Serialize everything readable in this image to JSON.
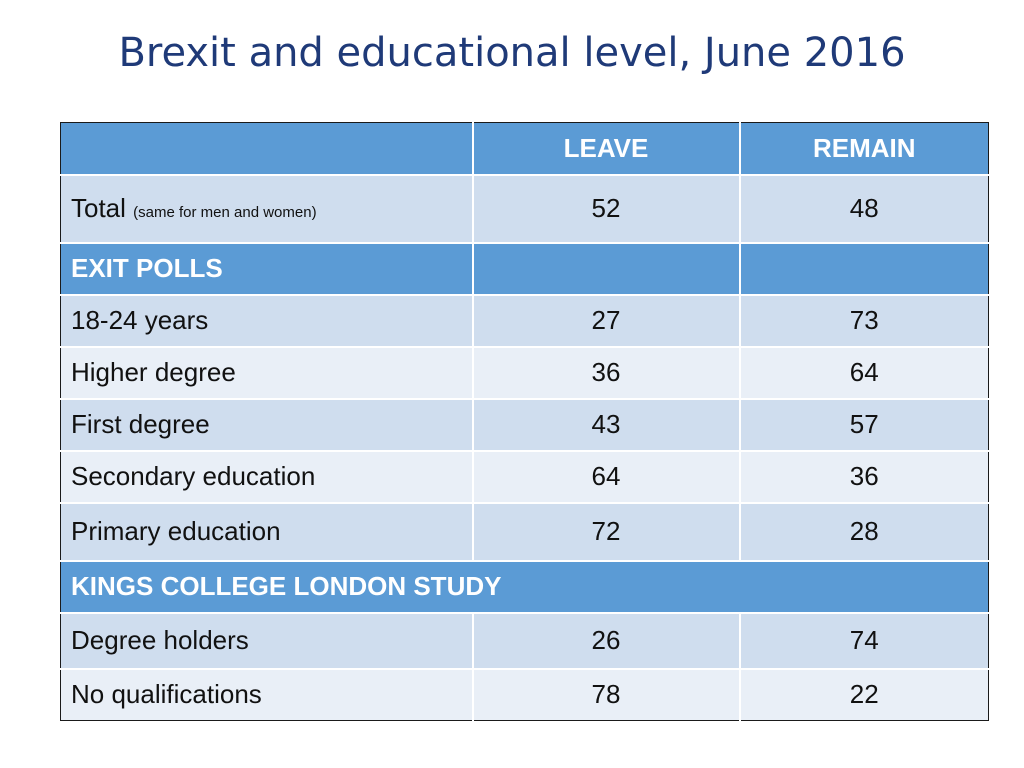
{
  "slide": {
    "title": "Brexit and educational level, June 2016"
  },
  "table": {
    "columns": [
      "",
      "LEAVE",
      "REMAIN"
    ],
    "total_row": {
      "label": "Total",
      "note": "(same for men and women)",
      "leave": "52",
      "remain": "48"
    },
    "exit_polls": {
      "heading": "EXIT POLLS",
      "rows": [
        {
          "label": "18-24 years",
          "leave": "27",
          "remain": "73"
        },
        {
          "label": "Higher degree",
          "leave": "36",
          "remain": "64"
        },
        {
          "label": "First degree",
          "leave": "43",
          "remain": "57"
        },
        {
          "label": "Secondary education",
          "leave": "64",
          "remain": "36"
        },
        {
          "label": "Primary education",
          "leave": "72",
          "remain": "28"
        }
      ]
    },
    "kcl_study": {
      "heading": "KINGS COLLEGE LONDON STUDY",
      "rows": [
        {
          "label": "Degree holders",
          "leave": "26",
          "remain": "74"
        },
        {
          "label": "No qualifications",
          "leave": "78",
          "remain": "22"
        }
      ]
    }
  },
  "colors": {
    "header_blue": "#5b9bd5",
    "row_dark": "#cfddee",
    "row_light": "#e9eff7",
    "title_blue": "#1f3a78"
  }
}
